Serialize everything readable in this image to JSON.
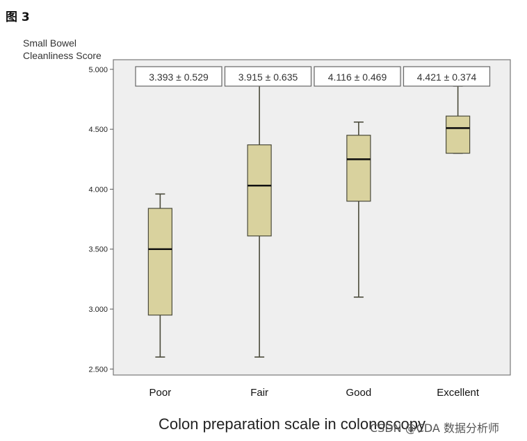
{
  "figure_label": "图 3",
  "watermark": "CSDN @CDA 数据分析师",
  "chart_data": {
    "type": "box",
    "title": "",
    "ylabel_lines": [
      "Small Bowel",
      "Cleanliness Score"
    ],
    "xlabel": "Colon preparation scale in colonoscopy",
    "ylim": [
      2.45,
      5.08
    ],
    "yticks": [
      2.5,
      3.0,
      3.5,
      4.0,
      4.5,
      5.0
    ],
    "ytick_labels": [
      "2.500",
      "3.000",
      "3.500",
      "4.000",
      "4.500",
      "5.000"
    ],
    "categories": [
      "Poor",
      "Fair",
      "Good",
      "Excellent"
    ],
    "boxes": [
      {
        "name": "Poor",
        "min": 2.6,
        "q1": 2.95,
        "median": 3.5,
        "q3": 3.84,
        "max": 3.96
      },
      {
        "name": "Fair",
        "min": 2.6,
        "q1": 3.61,
        "median": 4.03,
        "q3": 4.37,
        "max": 4.89
      },
      {
        "name": "Good",
        "min": 3.1,
        "q1": 3.9,
        "median": 4.25,
        "q3": 4.45,
        "max": 4.56
      },
      {
        "name": "Excellent",
        "min": 4.3,
        "q1": 4.3,
        "median": 4.51,
        "q3": 4.61,
        "max": 4.86
      }
    ],
    "annotations": [
      "3.393 ± 0.529",
      "3.915 ± 0.635",
      "4.116 ± 0.469",
      "4.421 ± 0.374"
    ],
    "colors": {
      "box_fill": "#d9d29e",
      "box_stroke": "#4a4a3a",
      "plot_bg": "#efefef",
      "frame": "#777777"
    }
  }
}
